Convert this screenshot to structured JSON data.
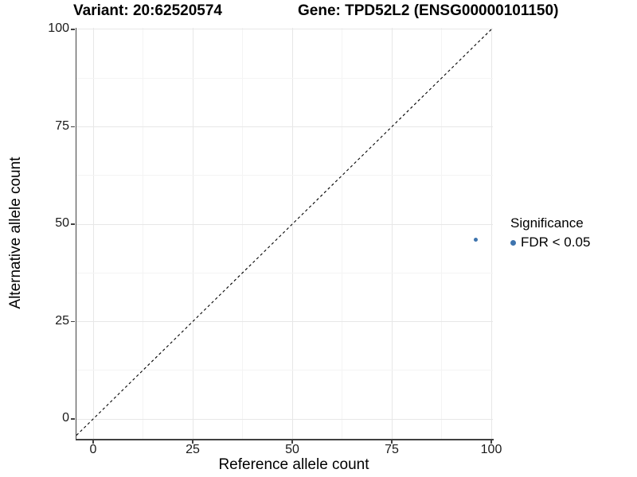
{
  "chart_data": {
    "type": "scatter",
    "title_left": "Variant: 20:62520574",
    "title_right": "Gene: TPD52L2 (ENSG00000101150)",
    "xlabel": "Reference allele count",
    "ylabel": "Alternative allele count",
    "x_ticks": [
      0,
      25,
      50,
      75,
      100
    ],
    "y_ticks": [
      0,
      25,
      50,
      75,
      100
    ],
    "xlim": [
      -4.2,
      100.4
    ],
    "ylim": [
      -5.1,
      100.4
    ],
    "grid": {
      "major": true,
      "minor": true,
      "background": "#ffffff"
    },
    "points": [
      {
        "x": 96,
        "y": 46,
        "series": "FDR < 0.05"
      }
    ],
    "identity_line": {
      "slope": 1,
      "intercept": 0,
      "style": "dashed",
      "color": "#000000"
    },
    "legend": {
      "position": "right",
      "title": "Significance",
      "entries": [
        {
          "label": "FDR < 0.05",
          "color": "#3e74ae"
        }
      ]
    },
    "colors": {
      "axis_line": "#404040",
      "grid_major": "#e7e7e7",
      "grid_minor": "#f4f4f4",
      "tick_label": "#1a1a1a"
    }
  }
}
